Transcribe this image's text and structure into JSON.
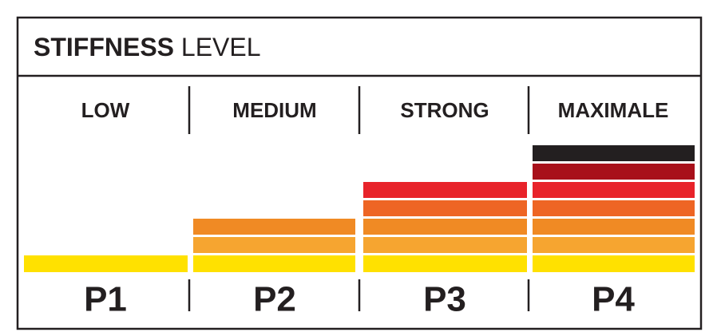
{
  "header": {
    "title_bold": "STIFFNESS",
    "title_rest": "LEVEL"
  },
  "levels": [
    {
      "label": "LOW",
      "code": "P1"
    },
    {
      "label": "MEDIUM",
      "code": "P2"
    },
    {
      "label": "STRONG",
      "code": "P3"
    },
    {
      "label": "MAXIMALE",
      "code": "P4"
    }
  ]
}
